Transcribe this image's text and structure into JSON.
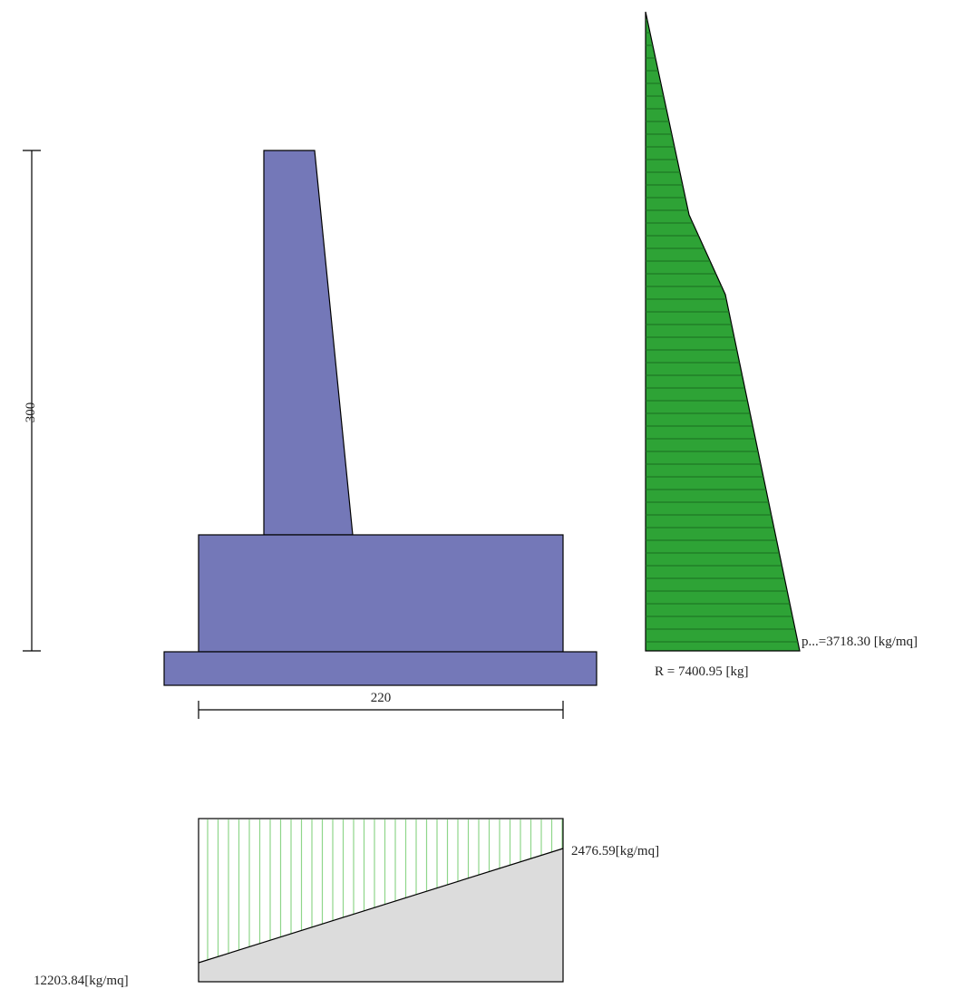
{
  "wall": {
    "height_label": "300",
    "base_width_label": "220"
  },
  "earth_pressure": {
    "resultant_label": "R = 7400.95 [kg]",
    "max_pressure_label": "p...=3718.30 [kg/mq]"
  },
  "foundation_pressure": {
    "left_value_label": "12203.84[kg/mq]",
    "right_value_label": "2476.59[kg/mq]"
  },
  "colors": {
    "wall_fill": "#7478b8",
    "pressure_fill": "#2ea336",
    "pressure_hatch": "#1a6e20",
    "foundation_hatch": "#8fd68a",
    "foundation_soil": "#dcdcdc",
    "line": "#000000"
  }
}
